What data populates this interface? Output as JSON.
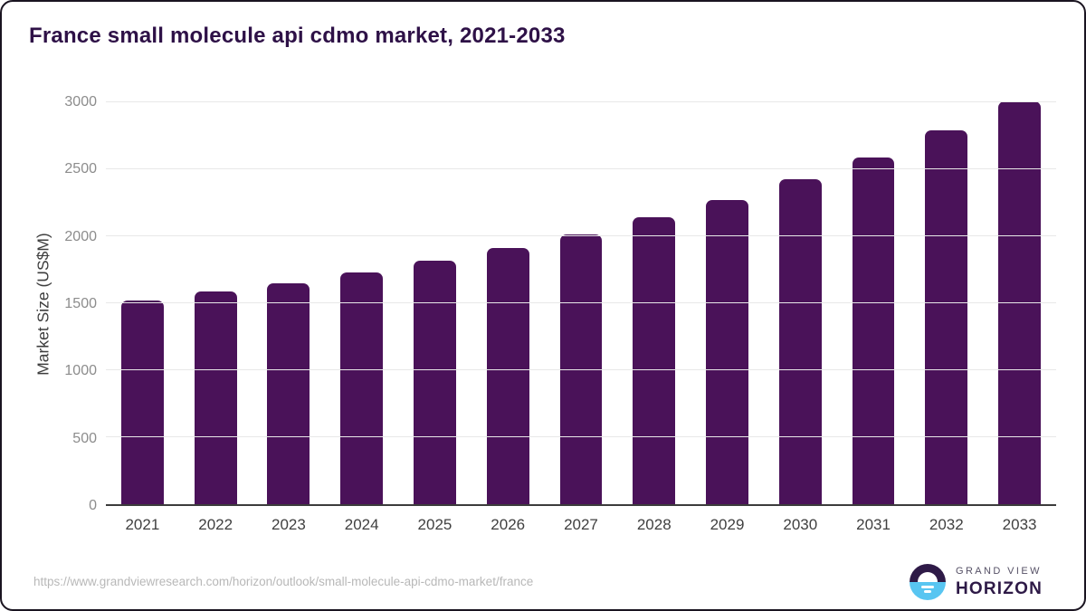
{
  "title": "France small molecule api cdmo market, 2021-2033",
  "title_color": "#2e1147",
  "chart_data": {
    "type": "bar",
    "title": "France small molecule api cdmo market, 2021-2033",
    "categories": [
      "2021",
      "2022",
      "2023",
      "2024",
      "2025",
      "2026",
      "2027",
      "2028",
      "2029",
      "2030",
      "2031",
      "2032",
      "2033"
    ],
    "values": [
      1520,
      1585,
      1650,
      1730,
      1820,
      1910,
      2015,
      2140,
      2270,
      2425,
      2590,
      2790,
      3005
    ],
    "xlabel": "",
    "ylabel": "Market Size (US$M)",
    "ylim": [
      0,
      3000
    ],
    "ytick_step": 500,
    "ytick_labels": [
      "0",
      "500",
      "1000",
      "1500",
      "2000",
      "2500",
      "3000"
    ],
    "grid": true,
    "legend": "none",
    "bar_color": "#4a1259",
    "gridline_color": "#e8e8e8",
    "axis_line_color": "#3c3c3c",
    "ytick_color": "#8c8c8c",
    "xtick_color": "#404040"
  },
  "footer": {
    "source_url": "https://www.grandviewresearch.com/horizon/outlook/small-molecule-api-cdmo-market/france",
    "logo": {
      "line1": "GRAND VIEW",
      "line2": "HORIZON",
      "icon_top_color": "#2e1a47",
      "icon_bottom_color": "#58c5f1"
    }
  }
}
